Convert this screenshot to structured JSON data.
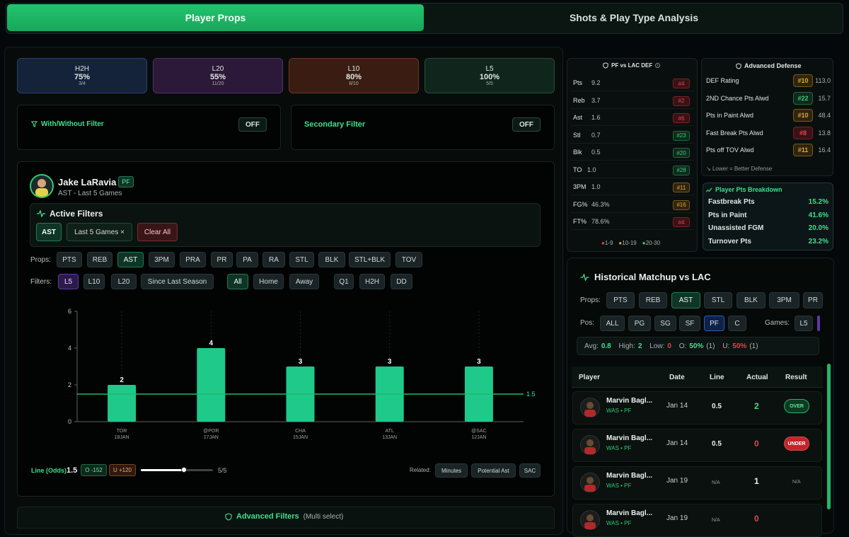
{
  "tabs": {
    "active": "Player Props",
    "inactive": "Shots & Play Type Analysis"
  },
  "hit_cards": [
    {
      "label": "H2H",
      "pct": "75%",
      "frac": "3/4",
      "bg": "#15233a",
      "border": "#27406b"
    },
    {
      "label": "L20",
      "pct": "55%",
      "frac": "11/20",
      "bg": "#2c1838",
      "border": "#53306a"
    },
    {
      "label": "L10",
      "pct": "80%",
      "frac": "8/10",
      "bg": "#3a1c12",
      "border": "#6b3520"
    },
    {
      "label": "L5",
      "pct": "100%",
      "frac": "5/5",
      "bg": "#10261c",
      "border": "#22503a"
    }
  ],
  "with_without": {
    "label": "With/Without Filter",
    "state": "OFF"
  },
  "secondary": {
    "label": "Secondary Filter",
    "state": "OFF"
  },
  "player": {
    "name": "Jake LaRavia",
    "position": "PF",
    "subtitle": "AST - Last 5 Games"
  },
  "active_filters": {
    "title": "Active Filters",
    "chips": [
      "AST",
      "Last 5 Games ×"
    ],
    "clear": "Clear All"
  },
  "props": {
    "label": "Props:",
    "items": [
      "PTS",
      "REB",
      "AST",
      "3PM",
      "PRA",
      "PR",
      "PA",
      "RA",
      "STL",
      "BLK",
      "STL+BLK",
      "TOV"
    ],
    "active": "AST"
  },
  "filters": {
    "label": "Filters:",
    "items": [
      "L5",
      "L10",
      "L20",
      "Since Last Season",
      "All",
      "Home",
      "Away",
      "Q1",
      "H2H",
      "DD"
    ]
  },
  "chart_data": {
    "type": "bar",
    "categories": [
      "TOR",
      "@POR",
      "CHA",
      "ATL",
      "@SAC"
    ],
    "dates": [
      "18JAN",
      "17JAN",
      "15JAN",
      "13JAN",
      "12JAN"
    ],
    "values": [
      2,
      4,
      3,
      3,
      3
    ],
    "ylim": [
      0,
      6
    ],
    "yticks": [
      "0",
      "2",
      "4",
      "6"
    ],
    "line": 1.5,
    "line_label": "1.5",
    "bar_color": "#1ec98a"
  },
  "line_odds": {
    "label": "Line (Odds)",
    "value": "1.5",
    "over": "O -152",
    "under": "U +120",
    "count": "5/5",
    "slider_fraction": 0.6
  },
  "related": {
    "label": "Related:",
    "items": [
      "Minutes",
      "Potential Ast",
      "SAC"
    ]
  },
  "advanced_filters": {
    "label": "Advanced Filters",
    "hint": "(Multi select)"
  },
  "def_vs": {
    "title": "PF vs LAC DEF",
    "rows": [
      {
        "stat": "Pts",
        "val": "9.2",
        "rank": "#4",
        "tone": "red"
      },
      {
        "stat": "Reb",
        "val": "3.7",
        "rank": "#2",
        "tone": "red"
      },
      {
        "stat": "Ast",
        "val": "1.6",
        "rank": "#6",
        "tone": "red"
      },
      {
        "stat": "Stl",
        "val": "0.7",
        "rank": "#23",
        "tone": "grn"
      },
      {
        "stat": "Blk",
        "val": "0.5",
        "rank": "#20",
        "tone": "grn"
      },
      {
        "stat": "TO",
        "val": "1.0",
        "rank": "#28",
        "tone": "grn"
      },
      {
        "stat": "3PM",
        "val": "1.0",
        "rank": "#11",
        "tone": "yel"
      },
      {
        "stat": "FG%",
        "val": "46.3%",
        "rank": "#16",
        "tone": "yel"
      },
      {
        "stat": "FT%",
        "val": "78.6%",
        "rank": "#4",
        "tone": "red"
      }
    ],
    "legend": [
      "1-9",
      "10-19",
      "20-30"
    ]
  },
  "adv_def": {
    "title": "Advanced Defense",
    "rows": [
      {
        "label": "DEF Rating",
        "rank": "#10",
        "val": "113.0",
        "tone": "yel"
      },
      {
        "label": "2ND Chance Pts Alwd",
        "rank": "#22",
        "val": "15.7",
        "tone": "grn"
      },
      {
        "label": "Pts in Paint Alwd",
        "rank": "#10",
        "val": "48.4",
        "tone": "yel"
      },
      {
        "label": "Fast Break Pts Alwd",
        "rank": "#8",
        "val": "13.8",
        "tone": "red"
      },
      {
        "label": "Pts off TOV Alwd",
        "rank": "#11",
        "val": "16.4",
        "tone": "yel"
      }
    ],
    "note": "Lower = Better Defense"
  },
  "breakdown": {
    "title": "Player Pts Breakdown",
    "rows": [
      {
        "label": "Fastbreak Pts",
        "val": "15.2%"
      },
      {
        "label": "Pts in Paint",
        "val": "41.6%"
      },
      {
        "label": "Unassisted FGM",
        "val": "20.0%"
      },
      {
        "label": "Turnover Pts",
        "val": "23.2%"
      }
    ]
  },
  "historical": {
    "title": "Historical Matchup vs LAC",
    "props_label": "Props:",
    "props": [
      "PTS",
      "REB",
      "AST",
      "STL",
      "BLK",
      "3PM",
      "PR"
    ],
    "pos_label": "Pos:",
    "pos": [
      "ALL",
      "PG",
      "SG",
      "SF",
      "PF",
      "C"
    ],
    "games_label": "Games:",
    "games": [
      "L5"
    ],
    "summary": {
      "avg_l": "Avg:",
      "avg": "0.8",
      "high_l": "High:",
      "high": "2",
      "low_l": "Low:",
      "low": "0",
      "o_l": "O:",
      "o": "50%",
      "o_n": "(1)",
      "u_l": "U:",
      "u": "50%",
      "u_n": "(1)"
    },
    "headers": [
      "Player",
      "Date",
      "Line",
      "Actual",
      "Result"
    ],
    "rows": [
      {
        "name": "Marvin Bagl...",
        "team": "WAS • PF",
        "date": "Jan 14",
        "line": "0.5",
        "actual": "2",
        "result": "OVER"
      },
      {
        "name": "Marvin Bagl...",
        "team": "WAS • PF",
        "date": "Jan 14",
        "line": "0.5",
        "actual": "0",
        "result": "UNDER"
      },
      {
        "name": "Marvin Bagl...",
        "team": "WAS • PF",
        "date": "Jan 19",
        "line": "N/A",
        "actual": "1",
        "result": "N/A"
      },
      {
        "name": "Marvin Bagl...",
        "team": "WAS • PF",
        "date": "Jan 19",
        "line": "N/A",
        "actual": "0",
        "result": ""
      }
    ]
  }
}
